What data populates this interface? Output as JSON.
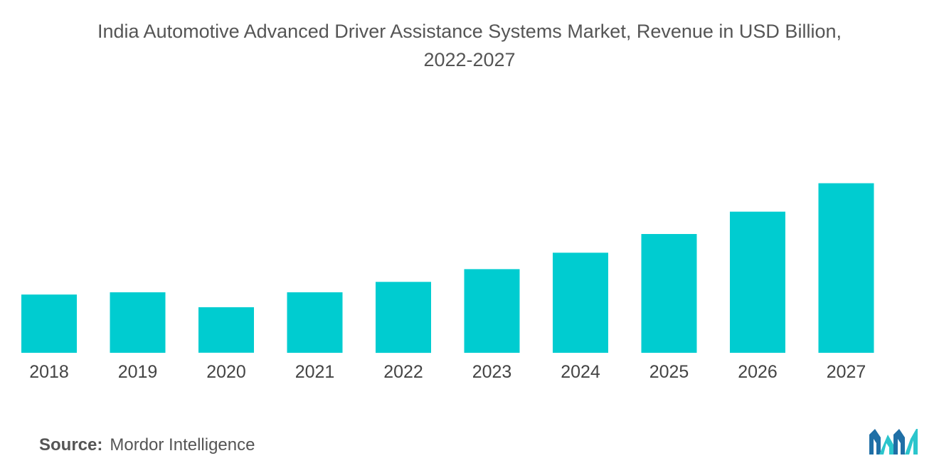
{
  "chart_data": {
    "type": "bar",
    "title_line1": "India Automotive Advanced Driver Assistance Systems Market, Revenue in USD Billion,",
    "title_line2": "2022-2027",
    "xlabel": "",
    "ylabel": "",
    "categories": [
      "2018",
      "2019",
      "2020",
      "2021",
      "2022",
      "2023",
      "2024",
      "2025",
      "2026",
      "2027"
    ],
    "values": [
      0.78,
      0.81,
      0.61,
      0.81,
      0.95,
      1.12,
      1.34,
      1.59,
      1.89,
      2.27
    ],
    "ylim": [
      0,
      2.4
    ],
    "grid": false,
    "axes_visible": false,
    "bar_color": "#00CCD0"
  },
  "source": {
    "label": "Source:",
    "value": "Mordor Intelligence"
  },
  "logo": {
    "icon": "mordor-intelligence-logo",
    "colors": [
      "#1F6FA6",
      "#2BC5CC"
    ]
  }
}
